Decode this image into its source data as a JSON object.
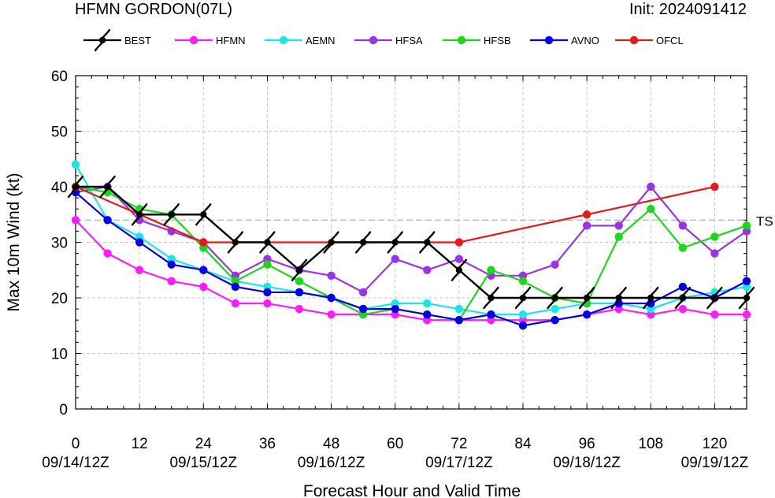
{
  "header": {
    "title": "HFMN GORDON(07L)",
    "init": "Init: 2024091412"
  },
  "chart_data": {
    "type": "line",
    "title": "HFMN GORDON(07L)",
    "xlabel": "Forecast Hour and Valid Time",
    "ylabel": "Max 10m Wind (kt)",
    "xlim": [
      0,
      126
    ],
    "ylim": [
      0,
      60
    ],
    "x_ticks": [
      0,
      12,
      24,
      36,
      48,
      60,
      72,
      84,
      96,
      108,
      120
    ],
    "y_ticks": [
      0,
      10,
      20,
      30,
      40,
      50,
      60
    ],
    "date_ticks": [
      {
        "x": 0,
        "label": "09/14/12Z"
      },
      {
        "x": 24,
        "label": "09/15/12Z"
      },
      {
        "x": 48,
        "label": "09/16/12Z"
      },
      {
        "x": 72,
        "label": "09/17/12Z"
      },
      {
        "x": 96,
        "label": "09/18/12Z"
      },
      {
        "x": 120,
        "label": "09/19/12Z"
      }
    ],
    "grid": true,
    "legend_position": "top",
    "reference_line": {
      "y": 34,
      "label": "TS"
    },
    "series": [
      {
        "name": "BEST",
        "color": "#000000",
        "marker": "hurricane-symbol",
        "x": [
          0,
          6,
          12,
          18,
          24,
          30,
          36,
          42,
          48,
          54,
          60,
          66,
          72,
          78,
          84,
          90,
          96,
          102,
          108,
          114,
          120,
          126
        ],
        "y": [
          40,
          40,
          35,
          35,
          35,
          30,
          30,
          25,
          30,
          30,
          30,
          30,
          25,
          20,
          20,
          20,
          20,
          20,
          20,
          20,
          20,
          20
        ]
      },
      {
        "name": "HFMN",
        "color": "#ff1aff",
        "marker": "circle",
        "x": [
          0,
          6,
          12,
          18,
          24,
          30,
          36,
          42,
          48,
          54,
          60,
          66,
          72,
          78,
          84,
          90,
          96,
          102,
          108,
          114,
          120,
          126
        ],
        "y": [
          34,
          28,
          25,
          23,
          22,
          19,
          19,
          18,
          17,
          17,
          17,
          16,
          16,
          16,
          16,
          16,
          17,
          18,
          17,
          18,
          17,
          17
        ]
      },
      {
        "name": "AEMN",
        "color": "#1ae6e6",
        "marker": "circle",
        "x": [
          0,
          6,
          12,
          18,
          24,
          30,
          36,
          42,
          48,
          54,
          60,
          66,
          72,
          78,
          84,
          90,
          96,
          102,
          108,
          114,
          120,
          126
        ],
        "y": [
          44,
          34,
          31,
          27,
          25,
          23,
          22,
          21,
          20,
          18,
          19,
          19,
          18,
          17,
          17,
          18,
          19,
          19,
          18,
          20,
          21,
          22
        ]
      },
      {
        "name": "HFSA",
        "color": "#9933e6",
        "marker": "circle",
        "x": [
          0,
          6,
          12,
          18,
          24,
          30,
          36,
          42,
          48,
          54,
          60,
          66,
          72,
          78,
          84,
          90,
          96,
          102,
          108,
          114,
          120,
          126
        ],
        "y": [
          39,
          40,
          34,
          32,
          30,
          24,
          27,
          25,
          24,
          21,
          27,
          25,
          27,
          24,
          24,
          26,
          33,
          33,
          40,
          33,
          28,
          32
        ]
      },
      {
        "name": "HFSB",
        "color": "#1ad91a",
        "marker": "circle",
        "x": [
          0,
          6,
          12,
          18,
          24,
          30,
          36,
          42,
          48,
          54,
          60,
          66,
          72,
          78,
          84,
          90,
          96,
          102,
          108,
          114,
          120,
          126
        ],
        "y": [
          40,
          39,
          36,
          35,
          29,
          23,
          26,
          23,
          20,
          17,
          18,
          17,
          16,
          25,
          23,
          20,
          19,
          31,
          36,
          29,
          31,
          33
        ]
      },
      {
        "name": "AVNO",
        "color": "#0000e6",
        "marker": "circle",
        "x": [
          0,
          6,
          12,
          18,
          24,
          30,
          36,
          42,
          48,
          54,
          60,
          66,
          72,
          78,
          84,
          90,
          96,
          102,
          108,
          114,
          120,
          126
        ],
        "y": [
          39,
          34,
          30,
          26,
          25,
          22,
          21,
          21,
          20,
          18,
          18,
          17,
          16,
          17,
          15,
          16,
          17,
          19,
          19,
          22,
          20,
          23
        ]
      },
      {
        "name": "OFCL",
        "color": "#e61a1a",
        "marker": "circle",
        "x": [
          0,
          24,
          72,
          96,
          120
        ],
        "y": [
          40,
          30,
          30,
          35,
          40
        ]
      }
    ]
  }
}
